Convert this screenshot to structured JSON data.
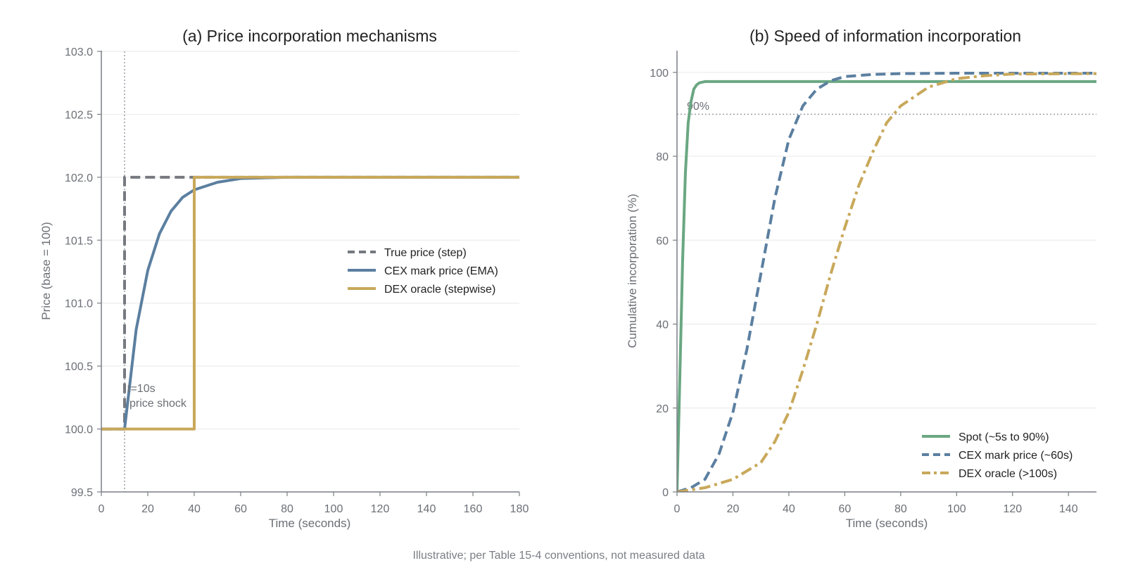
{
  "footnote": "Illustrative; per Table 15-4 conventions, not measured data",
  "chart_data": [
    {
      "type": "line",
      "title": "(a) Price incorporation mechanisms",
      "xlabel": "Time (seconds)",
      "ylabel": "Price (base = 100)",
      "xlim": [
        0,
        180
      ],
      "ylim": [
        99.5,
        103.0
      ],
      "xticks": [
        "0",
        "20",
        "40",
        "60",
        "80",
        "100",
        "120",
        "140",
        "160",
        "180"
      ],
      "yticks": [
        "99.5",
        "100.0",
        "100.5",
        "101.0",
        "101.5",
        "102.0",
        "102.5",
        "103.0"
      ],
      "grid": "horizontal",
      "legend_position": "center-right",
      "annotation": {
        "x": 10,
        "line1": "t=10s",
        "line2": "price shock"
      },
      "series": [
        {
          "name": "True price (step)",
          "color": "#76797f",
          "style": "dashed",
          "x": [
            0,
            10,
            10,
            180
          ],
          "y": [
            100.0,
            100.0,
            102.0,
            102.0
          ]
        },
        {
          "name": "CEX mark price (EMA)",
          "color": "#5b7fa0",
          "style": "solid",
          "x": [
            0,
            10,
            15,
            20,
            25,
            30,
            35,
            40,
            50,
            60,
            70,
            80,
            100,
            120,
            150,
            180
          ],
          "y": [
            100.0,
            100.0,
            100.79,
            101.26,
            101.55,
            101.73,
            101.84,
            101.9,
            101.96,
            101.99,
            101.995,
            102.0,
            102.0,
            102.0,
            102.0,
            102.0
          ]
        },
        {
          "name": "DEX oracle (stepwise)",
          "color": "#c8a85a",
          "style": "solid",
          "x": [
            0,
            40,
            40,
            180
          ],
          "y": [
            100.0,
            100.0,
            102.0,
            102.0
          ]
        }
      ]
    },
    {
      "type": "line",
      "title": "(b) Speed of information incorporation",
      "xlabel": "Time (seconds)",
      "ylabel": "Cumulative incorporation (%)",
      "xlim": [
        0,
        150
      ],
      "ylim": [
        0,
        105
      ],
      "xticks": [
        "0",
        "20",
        "40",
        "60",
        "80",
        "100",
        "120",
        "140"
      ],
      "yticks": [
        "0",
        "20",
        "40",
        "60",
        "80",
        "100"
      ],
      "grid": "horizontal",
      "legend_position": "lower-right",
      "reference_line": {
        "y": 90,
        "label": "90%"
      },
      "series": [
        {
          "name": "Spot (~5s to 90%)",
          "color": "#6aa782",
          "style": "solid",
          "x": [
            0,
            1,
            2,
            3,
            4,
            5,
            6,
            7,
            8,
            10,
            20,
            60,
            150
          ],
          "y": [
            0,
            27,
            55,
            76,
            88,
            93,
            96,
            97,
            97.5,
            97.8,
            97.8,
            97.8,
            97.8
          ]
        },
        {
          "name": "CEX mark price (~60s)",
          "color": "#5b7fa0",
          "style": "dashed",
          "x": [
            0,
            5,
            10,
            15,
            20,
            25,
            30,
            35,
            40,
            45,
            50,
            55,
            60,
            70,
            80,
            100,
            150
          ],
          "y": [
            0,
            1,
            3,
            9,
            19,
            34,
            52,
            70,
            84,
            92,
            96,
            98,
            99,
            99.5,
            99.7,
            99.8,
            99.8
          ]
        },
        {
          "name": "DEX oracle (>100s)",
          "color": "#c8a85a",
          "style": "dashdot",
          "x": [
            0,
            10,
            20,
            30,
            35,
            40,
            45,
            50,
            55,
            60,
            65,
            70,
            75,
            80,
            90,
            100,
            110,
            120,
            150
          ],
          "y": [
            0,
            1,
            3,
            7,
            12,
            19,
            29,
            40,
            52,
            63,
            73,
            81,
            88,
            92,
            96.5,
            98.5,
            99.2,
            99.6,
            99.7
          ]
        }
      ]
    }
  ]
}
